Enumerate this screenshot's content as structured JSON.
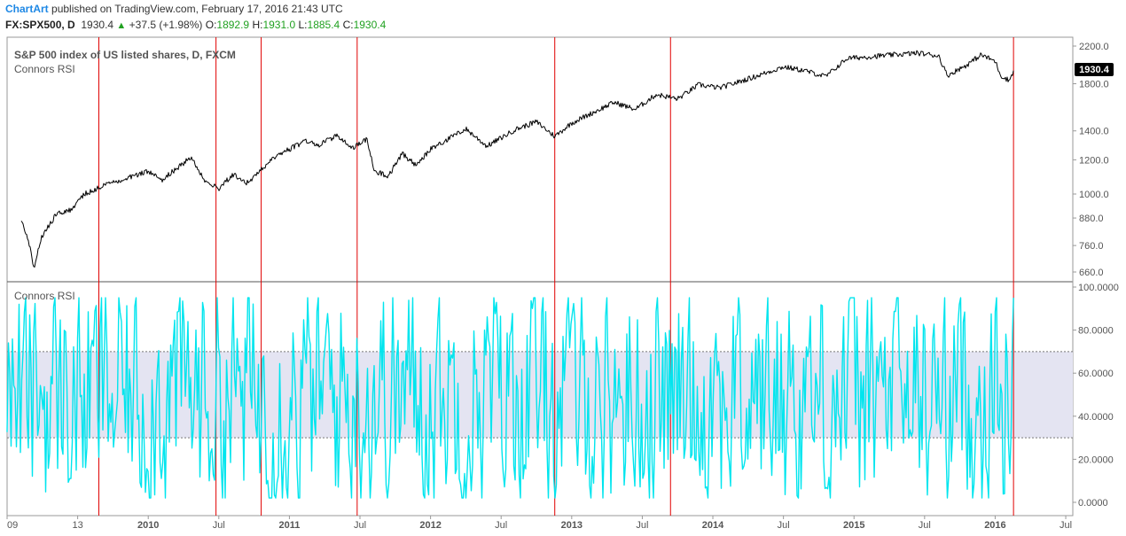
{
  "header": {
    "brand": "ChartArt",
    "published": "published on TradingView.com, February 17, 2016 21:43 UTC",
    "symbol": "FX:SPX500, D",
    "last": "1930.4",
    "change": "+37.5 (+1.98%)",
    "open_label": "O:",
    "open": "1892.9",
    "high_label": "H:",
    "high": "1931.0",
    "low_label": "L:",
    "low": "1885.4",
    "close_label": "C:",
    "close": "1930.4"
  },
  "colors": {
    "price_line": "#000000",
    "rsi_line": "#00e5ee",
    "vline": "#e00000",
    "band_fill": "#e4e4f2",
    "label_bg": "#000000"
  },
  "chart_data": [
    {
      "type": "line",
      "title": "S&P 500 index of US listed shares, D, FXCM",
      "subtitle": "Connors RSI",
      "scale": "log",
      "y_ticks": [
        660,
        760,
        880,
        1000,
        1200,
        1400,
        1800,
        2200
      ],
      "y_tick_labels": [
        "660.0",
        "760.0",
        "880.0",
        "1000.0",
        "1200.0",
        "1400.0",
        "1800.0",
        "2200.0"
      ],
      "last_value_label": "1930.4",
      "series": [
        {
          "values": [
            {
              "t": 2009.1,
              "v": 870
            },
            {
              "t": 2009.17,
              "v": 740
            },
            {
              "t": 2009.19,
              "v": 670
            },
            {
              "t": 2009.24,
              "v": 790
            },
            {
              "t": 2009.35,
              "v": 900
            },
            {
              "t": 2009.45,
              "v": 920
            },
            {
              "t": 2009.55,
              "v": 1000
            },
            {
              "t": 2009.7,
              "v": 1050
            },
            {
              "t": 2009.85,
              "v": 1090
            },
            {
              "t": 2010.0,
              "v": 1130
            },
            {
              "t": 2010.1,
              "v": 1080
            },
            {
              "t": 2010.3,
              "v": 1215
            },
            {
              "t": 2010.4,
              "v": 1080
            },
            {
              "t": 2010.5,
              "v": 1030
            },
            {
              "t": 2010.6,
              "v": 1110
            },
            {
              "t": 2010.7,
              "v": 1060
            },
            {
              "t": 2010.9,
              "v": 1220
            },
            {
              "t": 2011.0,
              "v": 1270
            },
            {
              "t": 2011.12,
              "v": 1330
            },
            {
              "t": 2011.2,
              "v": 1290
            },
            {
              "t": 2011.33,
              "v": 1365
            },
            {
              "t": 2011.45,
              "v": 1280
            },
            {
              "t": 2011.55,
              "v": 1340
            },
            {
              "t": 2011.6,
              "v": 1130
            },
            {
              "t": 2011.7,
              "v": 1100
            },
            {
              "t": 2011.8,
              "v": 1240
            },
            {
              "t": 2011.9,
              "v": 1160
            },
            {
              "t": 2012.0,
              "v": 1270
            },
            {
              "t": 2012.25,
              "v": 1415
            },
            {
              "t": 2012.4,
              "v": 1290
            },
            {
              "t": 2012.6,
              "v": 1410
            },
            {
              "t": 2012.75,
              "v": 1470
            },
            {
              "t": 2012.88,
              "v": 1360
            },
            {
              "t": 2013.0,
              "v": 1460
            },
            {
              "t": 2013.3,
              "v": 1630
            },
            {
              "t": 2013.45,
              "v": 1570
            },
            {
              "t": 2013.6,
              "v": 1700
            },
            {
              "t": 2013.75,
              "v": 1660
            },
            {
              "t": 2013.9,
              "v": 1790
            },
            {
              "t": 2014.05,
              "v": 1760
            },
            {
              "t": 2014.3,
              "v": 1870
            },
            {
              "t": 2014.5,
              "v": 1970
            },
            {
              "t": 2014.65,
              "v": 1930
            },
            {
              "t": 2014.8,
              "v": 1870
            },
            {
              "t": 2014.95,
              "v": 2060
            },
            {
              "t": 2015.2,
              "v": 2090
            },
            {
              "t": 2015.45,
              "v": 2120
            },
            {
              "t": 2015.6,
              "v": 2090
            },
            {
              "t": 2015.66,
              "v": 1880
            },
            {
              "t": 2015.8,
              "v": 1990
            },
            {
              "t": 2015.9,
              "v": 2100
            },
            {
              "t": 2016.0,
              "v": 2030
            },
            {
              "t": 2016.04,
              "v": 1880
            },
            {
              "t": 2016.1,
              "v": 1830
            },
            {
              "t": 2016.13,
              "v": 1930.4
            }
          ]
        }
      ]
    },
    {
      "type": "line",
      "title": "Connors RSI",
      "ylim": [
        0,
        100
      ],
      "y_ticks": [
        0,
        20,
        40,
        60,
        80,
        100
      ],
      "y_tick_labels": [
        "0.0000",
        "20.0000",
        "40.0000",
        "60.0000",
        "80.0000",
        "100.0000"
      ],
      "bands": {
        "upper": 70,
        "lower": 30
      },
      "range_low": 2,
      "range_high": 95,
      "last_value": 95
    }
  ],
  "x_axis": {
    "ticks": [
      {
        "t": 2009.0,
        "label": "09"
      },
      {
        "t": 2009.5,
        "label": "13"
      },
      {
        "t": 2010.0,
        "label": "2010"
      },
      {
        "t": 2010.5,
        "label": "Jul"
      },
      {
        "t": 2011.0,
        "label": "2011"
      },
      {
        "t": 2011.5,
        "label": "Jul"
      },
      {
        "t": 2012.0,
        "label": "2012"
      },
      {
        "t": 2012.5,
        "label": "Jul"
      },
      {
        "t": 2013.0,
        "label": "2013"
      },
      {
        "t": 2013.5,
        "label": "Jul"
      },
      {
        "t": 2014.0,
        "label": "2014"
      },
      {
        "t": 2014.5,
        "label": "Jul"
      },
      {
        "t": 2015.0,
        "label": "2015"
      },
      {
        "t": 2015.5,
        "label": "Jul"
      },
      {
        "t": 2016.0,
        "label": "2016"
      },
      {
        "t": 2016.5,
        "label": "Jul"
      }
    ],
    "marker_dates": [
      2009.65,
      2010.48,
      2010.8,
      2011.48,
      2012.88,
      2013.7,
      2016.13
    ]
  }
}
